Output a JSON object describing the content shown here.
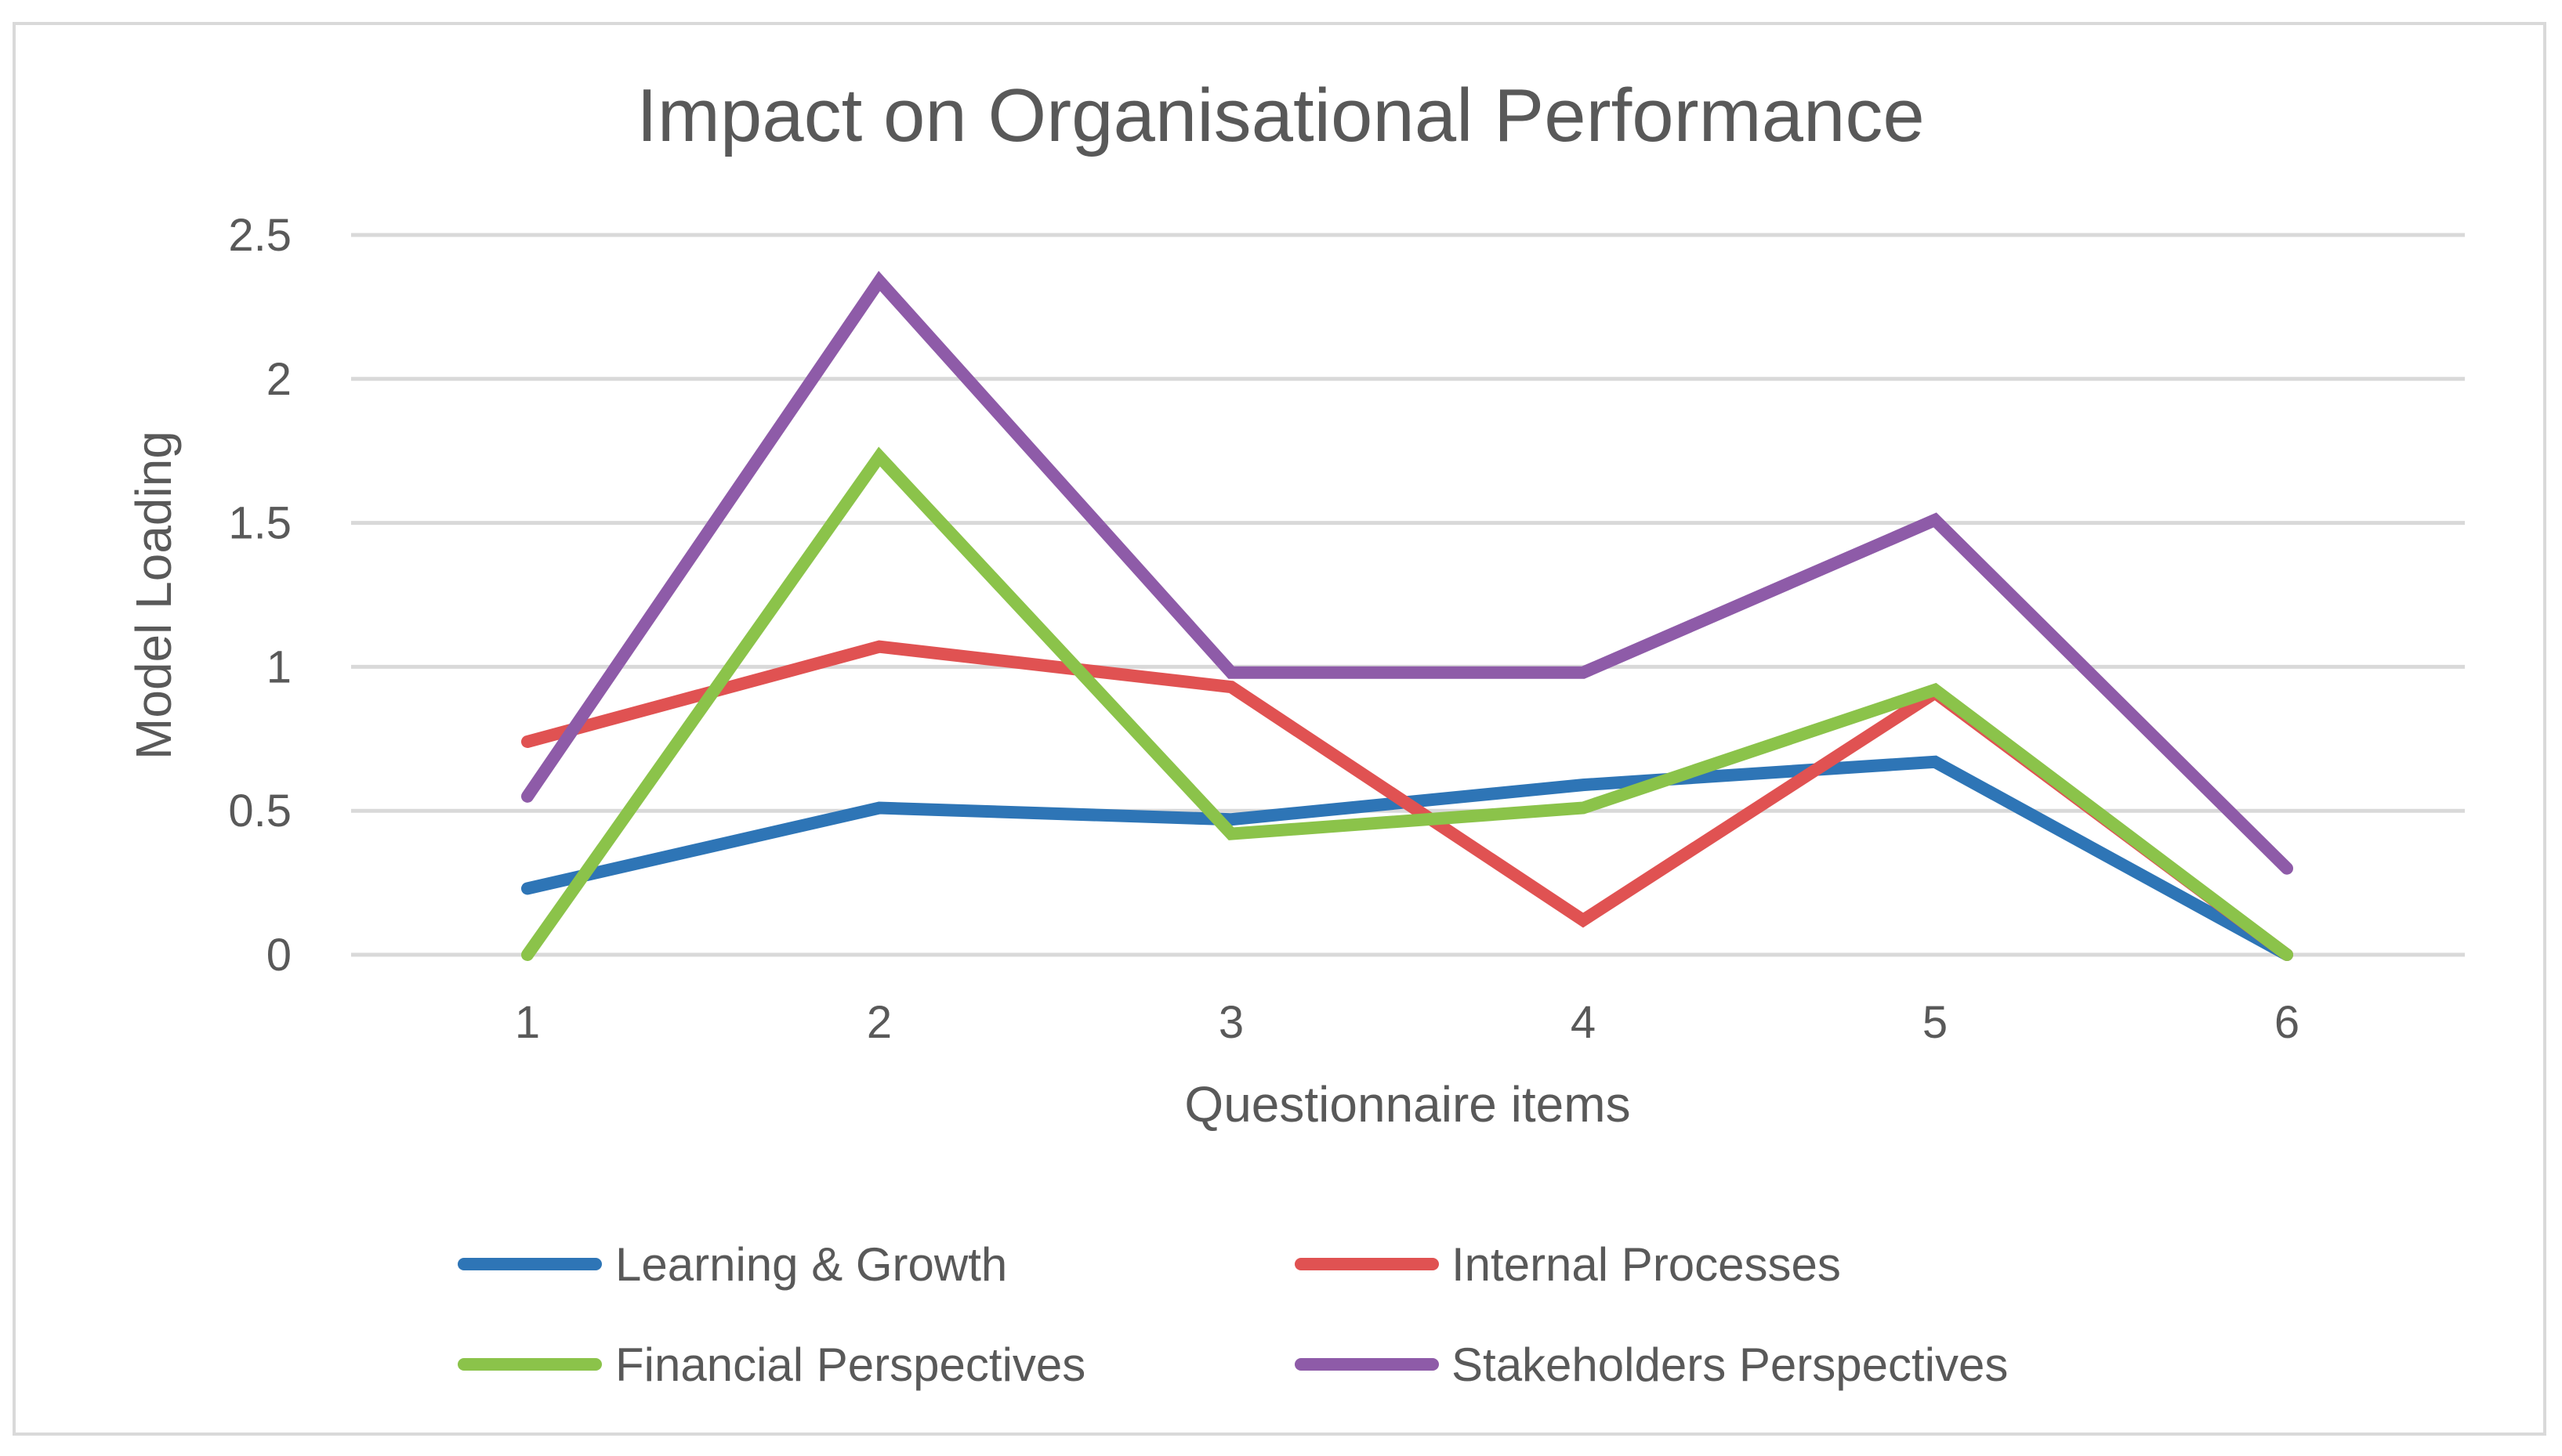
{
  "chart_data": {
    "type": "line",
    "title": "Impact on Organisational Performance",
    "xlabel": "Questionnaire items",
    "ylabel": "Model Loading",
    "x": [
      1,
      2,
      3,
      4,
      5,
      6
    ],
    "x_tick_labels": [
      "1",
      "2",
      "3",
      "4",
      "5",
      "6"
    ],
    "y_ticks": [
      0,
      0.5,
      1,
      1.5,
      2,
      2.5
    ],
    "y_tick_labels": [
      "0",
      "0.5",
      "1",
      "1.5",
      "2",
      "2.5"
    ],
    "ylim": [
      0,
      2.5
    ],
    "grid": true,
    "legend_position": "bottom",
    "series": [
      {
        "name": "Learning & Growth",
        "color": "#2E75B6",
        "values": [
          0.23,
          0.51,
          0.47,
          0.59,
          0.67,
          0.0
        ]
      },
      {
        "name": "Internal Processes",
        "color": "#E05252",
        "values": [
          0.74,
          1.07,
          0.93,
          0.12,
          0.91,
          0.0
        ]
      },
      {
        "name": "Financial Perspectives",
        "color": "#8BC34A",
        "values": [
          0.0,
          1.73,
          0.42,
          0.51,
          0.92,
          0.0
        ]
      },
      {
        "name": "Stakeholders Perspectives",
        "color": "#8E5BA8",
        "values": [
          0.55,
          2.34,
          0.98,
          0.98,
          1.51,
          0.3
        ]
      }
    ]
  }
}
